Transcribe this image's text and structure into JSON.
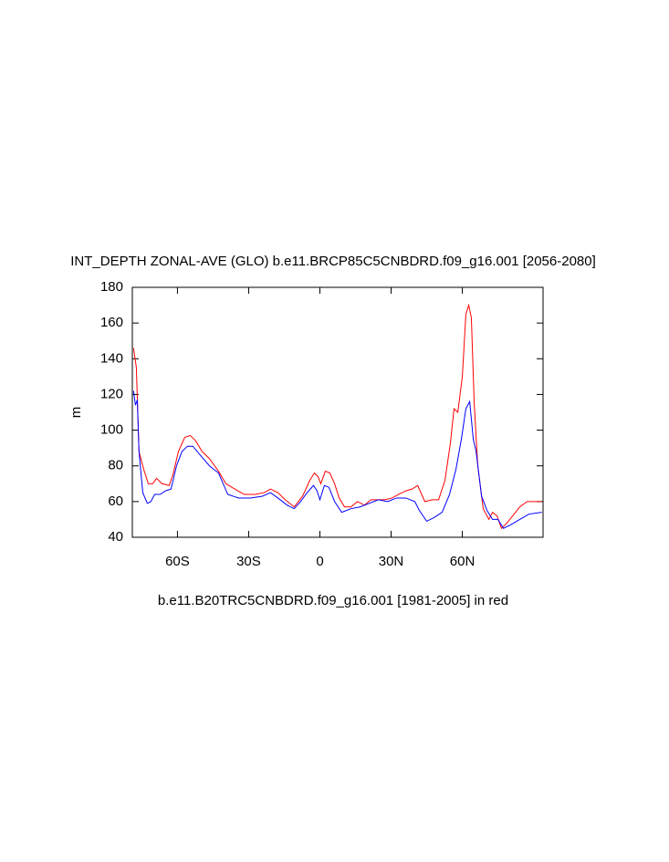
{
  "chart_data": {
    "type": "line",
    "title": "INT_DEPTH ZONAL-AVE (GLO) b.e11.BRCP85C5CNBDRD.f09_g16.001 [2056-2080]",
    "xlabel": "b.e11.B20TRC5CNBDRD.f09_g16.001 [1981-2005] in red",
    "ylabel": "m",
    "xlim": [
      -79,
      94
    ],
    "ylim": [
      40,
      180
    ],
    "xticks": [
      {
        "value": -60,
        "label": "60S"
      },
      {
        "value": -30,
        "label": "30S"
      },
      {
        "value": 0,
        "label": "0"
      },
      {
        "value": 30,
        "label": "30N"
      },
      {
        "value": 60,
        "label": "60N"
      }
    ],
    "yticks": [
      40,
      60,
      80,
      100,
      120,
      140,
      160,
      180
    ],
    "series": [
      {
        "color": "#ff0000",
        "x": [
          -78.5,
          -77.3,
          -76.2,
          -74.2,
          -72.3,
          -70.4,
          -68.8,
          -66.5,
          -63.5,
          -61.9,
          -59.6,
          -56.9,
          -54.6,
          -52.3,
          -49.6,
          -46.5,
          -42.7,
          -39.6,
          -35.8,
          -31.9,
          -27.3,
          -23.5,
          -20.8,
          -17.7,
          -14.6,
          -10.8,
          -7.3,
          -4.2,
          -2.3,
          -0.8,
          0.4,
          2.3,
          4.2,
          6.2,
          8.1,
          10.4,
          13.1,
          15.8,
          18.8,
          21.5,
          24.6,
          27.3,
          30.4,
          33.1,
          36.2,
          38.8,
          41.2,
          44.2,
          47.3,
          50,
          52.7,
          55,
          56.5,
          58.1,
          60,
          61.5,
          62.7,
          63.8,
          65,
          66.5,
          68.8,
          71.2,
          72.7,
          74.6,
          76.5,
          78.8,
          81.2,
          84.2,
          87.3,
          89.6,
          93.5
        ],
        "values": [
          146,
          135,
          88,
          78,
          70,
          70,
          73,
          70,
          69,
          75,
          88,
          96,
          97,
          94,
          88,
          84,
          77,
          70,
          67,
          64,
          64,
          65,
          67,
          65,
          61,
          57,
          63,
          72,
          76,
          74,
          70,
          77,
          76,
          70,
          62,
          57,
          57,
          60,
          58,
          61,
          61,
          61,
          62,
          64,
          66,
          67,
          69,
          60,
          61,
          61,
          72,
          93,
          112,
          110,
          130,
          165,
          170,
          163,
          115,
          80,
          56,
          50,
          54,
          52,
          45,
          48,
          52,
          57,
          60,
          60,
          60
        ]
      },
      {
        "color": "#0000ff",
        "x": [
          -78.5,
          -77.7,
          -76.9,
          -76.2,
          -74.6,
          -72.7,
          -71.2,
          -69.6,
          -67.3,
          -65,
          -62.7,
          -60.4,
          -58.1,
          -55.8,
          -53.5,
          -50.4,
          -46.5,
          -42.7,
          -38.8,
          -34.2,
          -29.2,
          -24.2,
          -20.8,
          -17.7,
          -13.8,
          -10.8,
          -8.1,
          -5.4,
          -2.7,
          -1.2,
          0,
          1.9,
          3.8,
          6.2,
          9.2,
          13.1,
          16.9,
          20.8,
          24.6,
          28.5,
          32.3,
          36.2,
          40,
          41.9,
          45,
          48.1,
          51.5,
          54.6,
          57.3,
          59.6,
          61.5,
          63.1,
          64.6,
          65.8,
          68.1,
          70.4,
          72.7,
          75,
          77.3,
          80.4,
          84.2,
          88.1,
          93.5
        ],
        "values": [
          122,
          114,
          117,
          88,
          65,
          59,
          60,
          64,
          64,
          66,
          67,
          80,
          88,
          91,
          91,
          86,
          80,
          76,
          64,
          62,
          62,
          63,
          65,
          62,
          58,
          56,
          60,
          65,
          69,
          66,
          61,
          69,
          68,
          60,
          54,
          56,
          57,
          59,
          61,
          60,
          62,
          62,
          60,
          55,
          49,
          51,
          54,
          64,
          78,
          95,
          112,
          116,
          95,
          88,
          63,
          55,
          50,
          50,
          45,
          47,
          50,
          53,
          54
        ]
      }
    ]
  }
}
